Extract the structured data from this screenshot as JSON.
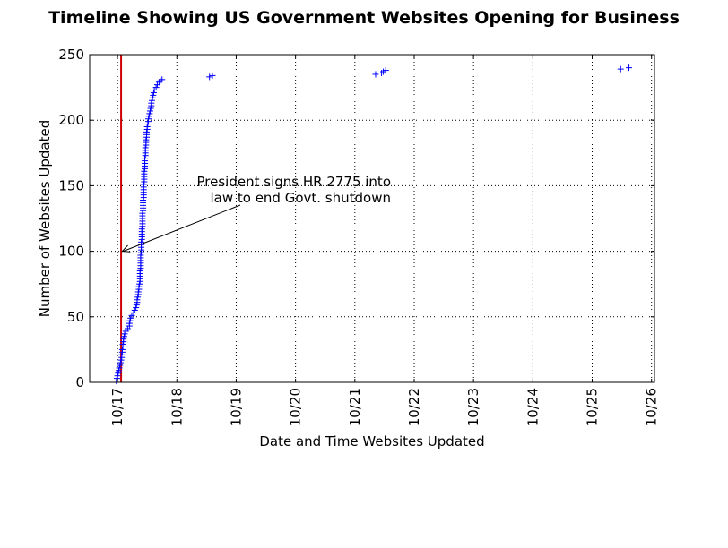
{
  "chart_data": {
    "type": "scatter",
    "title": "Timeline Showing US Government Websites Opening for Business",
    "xlabel": "Date and Time Websites Updated",
    "ylabel": "Number of Websites Updated",
    "x_unit": "days",
    "xlim": [
      16.53,
      26.05
    ],
    "ylim": [
      0,
      250
    ],
    "x_ticks": [
      {
        "value": 17,
        "label": "10/17"
      },
      {
        "value": 18,
        "label": "10/18"
      },
      {
        "value": 19,
        "label": "10/19"
      },
      {
        "value": 20,
        "label": "10/20"
      },
      {
        "value": 21,
        "label": "10/21"
      },
      {
        "value": 22,
        "label": "10/22"
      },
      {
        "value": 23,
        "label": "10/23"
      },
      {
        "value": 24,
        "label": "10/24"
      },
      {
        "value": 25,
        "label": "10/25"
      },
      {
        "value": 26,
        "label": "10/26"
      }
    ],
    "y_ticks": [
      0,
      50,
      100,
      150,
      200,
      250
    ],
    "grid": true,
    "marker": "+",
    "marker_color": "#0000ff",
    "vline": {
      "x": 17.06,
      "color": "#cc0000"
    },
    "annotation": {
      "lines": [
        "President signs HR 2775 into",
        "law to end Govt. shutdown"
      ],
      "arrow_to": {
        "x": 17.08,
        "y": 100
      }
    },
    "points": [
      [
        16.98,
        1
      ],
      [
        16.99,
        3
      ],
      [
        17.0,
        5
      ],
      [
        17.01,
        7
      ],
      [
        17.02,
        9
      ],
      [
        17.03,
        11
      ],
      [
        17.04,
        13
      ],
      [
        17.05,
        15
      ],
      [
        17.06,
        17
      ],
      [
        17.07,
        19
      ],
      [
        17.07,
        21
      ],
      [
        17.08,
        23
      ],
      [
        17.08,
        25
      ],
      [
        17.09,
        27
      ],
      [
        17.09,
        29
      ],
      [
        17.1,
        31
      ],
      [
        17.1,
        33
      ],
      [
        17.11,
        35
      ],
      [
        17.12,
        37
      ],
      [
        17.14,
        39
      ],
      [
        17.17,
        41
      ],
      [
        17.2,
        43
      ],
      [
        17.2,
        45
      ],
      [
        17.21,
        47
      ],
      [
        17.22,
        49
      ],
      [
        17.24,
        51
      ],
      [
        17.27,
        53
      ],
      [
        17.29,
        55
      ],
      [
        17.31,
        57
      ],
      [
        17.32,
        59
      ],
      [
        17.33,
        61
      ],
      [
        17.33,
        63
      ],
      [
        17.34,
        65
      ],
      [
        17.35,
        67
      ],
      [
        17.35,
        69
      ],
      [
        17.36,
        71
      ],
      [
        17.36,
        73
      ],
      [
        17.37,
        75
      ],
      [
        17.38,
        77
      ],
      [
        17.38,
        79
      ],
      [
        17.38,
        81
      ],
      [
        17.38,
        83
      ],
      [
        17.38,
        85
      ],
      [
        17.39,
        87
      ],
      [
        17.39,
        89
      ],
      [
        17.39,
        91
      ],
      [
        17.39,
        93
      ],
      [
        17.39,
        95
      ],
      [
        17.39,
        97
      ],
      [
        17.4,
        99
      ],
      [
        17.4,
        101
      ],
      [
        17.4,
        103
      ],
      [
        17.4,
        105
      ],
      [
        17.4,
        107
      ],
      [
        17.41,
        109
      ],
      [
        17.41,
        111
      ],
      [
        17.41,
        113
      ],
      [
        17.41,
        115
      ],
      [
        17.41,
        117
      ],
      [
        17.42,
        119
      ],
      [
        17.42,
        121
      ],
      [
        17.42,
        123
      ],
      [
        17.42,
        125
      ],
      [
        17.42,
        127
      ],
      [
        17.42,
        129
      ],
      [
        17.43,
        131
      ],
      [
        17.43,
        133
      ],
      [
        17.43,
        135
      ],
      [
        17.43,
        137
      ],
      [
        17.43,
        139
      ],
      [
        17.44,
        141
      ],
      [
        17.44,
        143
      ],
      [
        17.44,
        145
      ],
      [
        17.44,
        147
      ],
      [
        17.44,
        149
      ],
      [
        17.44,
        151
      ],
      [
        17.45,
        153
      ],
      [
        17.45,
        155
      ],
      [
        17.45,
        157
      ],
      [
        17.45,
        159
      ],
      [
        17.45,
        161
      ],
      [
        17.46,
        163
      ],
      [
        17.46,
        165
      ],
      [
        17.46,
        167
      ],
      [
        17.46,
        169
      ],
      [
        17.46,
        171
      ],
      [
        17.47,
        173
      ],
      [
        17.47,
        175
      ],
      [
        17.47,
        177
      ],
      [
        17.47,
        179
      ],
      [
        17.48,
        181
      ],
      [
        17.48,
        183
      ],
      [
        17.48,
        185
      ],
      [
        17.49,
        187
      ],
      [
        17.49,
        189
      ],
      [
        17.49,
        191
      ],
      [
        17.5,
        193
      ],
      [
        17.5,
        195
      ],
      [
        17.51,
        197
      ],
      [
        17.52,
        199
      ],
      [
        17.52,
        201
      ],
      [
        17.53,
        203
      ],
      [
        17.54,
        205
      ],
      [
        17.55,
        207
      ],
      [
        17.56,
        209
      ],
      [
        17.57,
        211
      ],
      [
        17.57,
        213
      ],
      [
        17.58,
        215
      ],
      [
        17.59,
        217
      ],
      [
        17.6,
        219
      ],
      [
        17.61,
        221
      ],
      [
        17.62,
        223
      ],
      [
        17.65,
        225
      ],
      [
        17.67,
        227
      ],
      [
        17.7,
        229
      ],
      [
        17.72,
        230
      ],
      [
        17.75,
        231
      ],
      [
        18.55,
        233
      ],
      [
        18.6,
        234
      ],
      [
        21.35,
        235
      ],
      [
        21.45,
        236
      ],
      [
        21.48,
        237
      ],
      [
        21.52,
        238
      ],
      [
        25.48,
        239
      ],
      [
        25.62,
        240
      ]
    ]
  }
}
